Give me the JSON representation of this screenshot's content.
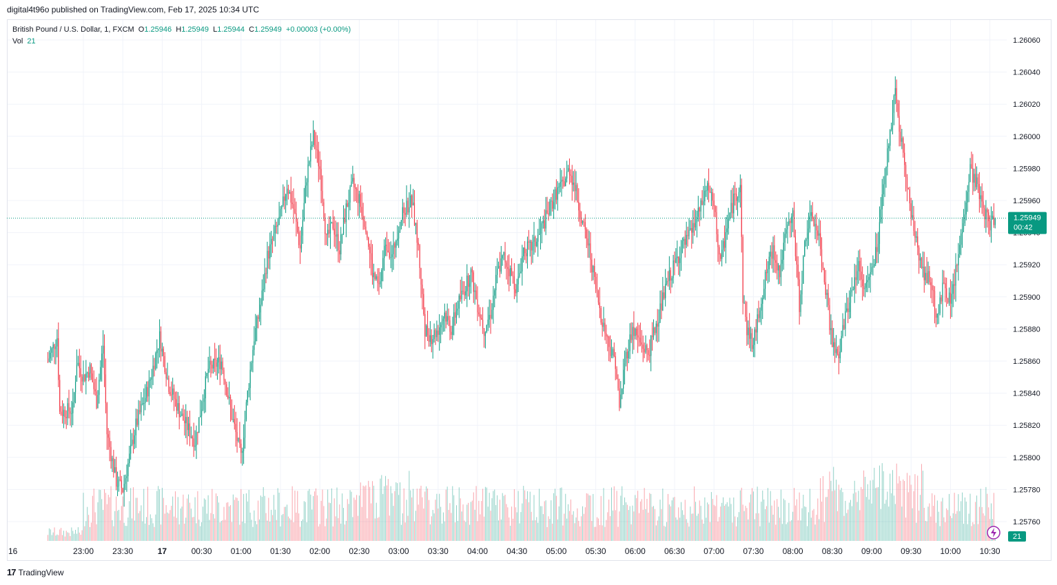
{
  "header": {
    "published": "digital4t96o published on TradingView.com, Feb 17, 2025 10:34 UTC"
  },
  "legend": {
    "symbol": "British Pound / U.S. Dollar, 1, FXCM",
    "o_label": "O",
    "o_value": "1.25946",
    "h_label": "H",
    "h_value": "1.25949",
    "l_label": "L",
    "l_value": "1.25944",
    "c_label": "C",
    "c_value": "1.25949",
    "change": "+0.00003 (+0.00%)",
    "vol_label": "Vol",
    "vol_value": "21"
  },
  "price_badge": {
    "price": "1.25949",
    "countdown": "00:42"
  },
  "volume_badge": "21",
  "footer": {
    "brand": "TradingView",
    "logo_text": "17"
  },
  "colors": {
    "up": "#089981",
    "down": "#f23645",
    "grid": "#f0f3fa",
    "axis_text": "#131722"
  },
  "icons": [
    "lightning-icon",
    "tradingview-logo-icon"
  ],
  "chart_data": {
    "type": "candlestick",
    "interval": "1 minute",
    "last_price": 1.25949,
    "ylim": [
      1.2575,
      1.26065
    ],
    "y_ticks": [
      "1.26060",
      "1.26040",
      "1.26020",
      "1.26000",
      "1.25980",
      "1.25960",
      "1.25940",
      "1.25920",
      "1.25900",
      "1.25880",
      "1.25860",
      "1.25840",
      "1.25820",
      "1.25800",
      "1.25780",
      "1.25760"
    ],
    "x_ticks": [
      "16",
      "23:00",
      "23:30",
      "17",
      "00:30",
      "01:00",
      "01:30",
      "02:00",
      "02:30",
      "03:00",
      "03:30",
      "04:00",
      "04:30",
      "05:00",
      "05:30",
      "06:00",
      "06:30",
      "07:00",
      "07:30",
      "08:00",
      "08:30",
      "09:00",
      "09:30",
      "10:00",
      "10:30"
    ],
    "close_path": [
      {
        "t": "22:33",
        "v": 1.2586
      },
      {
        "t": "22:40",
        "v": 1.25875
      },
      {
        "t": "22:42",
        "v": 1.25828
      },
      {
        "t": "22:52",
        "v": 1.2583
      },
      {
        "t": "22:55",
        "v": 1.2586
      },
      {
        "t": "23:00",
        "v": 1.2585
      },
      {
        "t": "23:05",
        "v": 1.25855
      },
      {
        "t": "23:10",
        "v": 1.25835
      },
      {
        "t": "23:15",
        "v": 1.2587
      },
      {
        "t": "23:18",
        "v": 1.25815
      },
      {
        "t": "23:25",
        "v": 1.25785
      },
      {
        "t": "23:30",
        "v": 1.2578
      },
      {
        "t": "23:40",
        "v": 1.2582
      },
      {
        "t": "23:50",
        "v": 1.25845
      },
      {
        "t": "23:58",
        "v": 1.25875
      },
      {
        "t": "00:05",
        "v": 1.25845
      },
      {
        "t": "00:15",
        "v": 1.25825
      },
      {
        "t": "00:25",
        "v": 1.2581
      },
      {
        "t": "00:35",
        "v": 1.25855
      },
      {
        "t": "00:45",
        "v": 1.2586
      },
      {
        "t": "00:52",
        "v": 1.2583
      },
      {
        "t": "01:00",
        "v": 1.258
      },
      {
        "t": "01:05",
        "v": 1.2584
      },
      {
        "t": "01:10",
        "v": 1.25875
      },
      {
        "t": "01:15",
        "v": 1.25895
      },
      {
        "t": "01:20",
        "v": 1.25925
      },
      {
        "t": "01:30",
        "v": 1.2595
      },
      {
        "t": "01:35",
        "v": 1.2597
      },
      {
        "t": "01:40",
        "v": 1.25955
      },
      {
        "t": "01:45",
        "v": 1.2593
      },
      {
        "t": "01:50",
        "v": 1.25975
      },
      {
        "t": "01:55",
        "v": 1.26
      },
      {
        "t": "02:00",
        "v": 1.2598
      },
      {
        "t": "02:05",
        "v": 1.25935
      },
      {
        "t": "02:10",
        "v": 1.25945
      },
      {
        "t": "02:15",
        "v": 1.2593
      },
      {
        "t": "02:20",
        "v": 1.25955
      },
      {
        "t": "02:25",
        "v": 1.2597
      },
      {
        "t": "02:30",
        "v": 1.2596
      },
      {
        "t": "02:35",
        "v": 1.25945
      },
      {
        "t": "02:40",
        "v": 1.25915
      },
      {
        "t": "02:45",
        "v": 1.25905
      },
      {
        "t": "02:50",
        "v": 1.25935
      },
      {
        "t": "02:55",
        "v": 1.25925
      },
      {
        "t": "03:00",
        "v": 1.25945
      },
      {
        "t": "03:05",
        "v": 1.25955
      },
      {
        "t": "03:10",
        "v": 1.2596
      },
      {
        "t": "03:15",
        "v": 1.2593
      },
      {
        "t": "03:20",
        "v": 1.2588
      },
      {
        "t": "03:25",
        "v": 1.25875
      },
      {
        "t": "03:30",
        "v": 1.2588
      },
      {
        "t": "03:35",
        "v": 1.2589
      },
      {
        "t": "03:40",
        "v": 1.2588
      },
      {
        "t": "03:45",
        "v": 1.25895
      },
      {
        "t": "03:50",
        "v": 1.25905
      },
      {
        "t": "03:55",
        "v": 1.25915
      },
      {
        "t": "04:00",
        "v": 1.25895
      },
      {
        "t": "04:05",
        "v": 1.2588
      },
      {
        "t": "04:10",
        "v": 1.2589
      },
      {
        "t": "04:15",
        "v": 1.25915
      },
      {
        "t": "04:20",
        "v": 1.25925
      },
      {
        "t": "04:25",
        "v": 1.25915
      },
      {
        "t": "04:30",
        "v": 1.25905
      },
      {
        "t": "04:35",
        "v": 1.2593
      },
      {
        "t": "04:40",
        "v": 1.2593
      },
      {
        "t": "04:45",
        "v": 1.25935
      },
      {
        "t": "04:50",
        "v": 1.25945
      },
      {
        "t": "04:55",
        "v": 1.25955
      },
      {
        "t": "05:00",
        "v": 1.25965
      },
      {
        "t": "05:05",
        "v": 1.2597
      },
      {
        "t": "05:10",
        "v": 1.2598
      },
      {
        "t": "05:15",
        "v": 1.25965
      },
      {
        "t": "05:20",
        "v": 1.25945
      },
      {
        "t": "05:25",
        "v": 1.2593
      },
      {
        "t": "05:30",
        "v": 1.25905
      },
      {
        "t": "05:35",
        "v": 1.25885
      },
      {
        "t": "05:40",
        "v": 1.2587
      },
      {
        "t": "05:45",
        "v": 1.2586
      },
      {
        "t": "05:48",
        "v": 1.2583
      },
      {
        "t": "05:52",
        "v": 1.2586
      },
      {
        "t": "05:58",
        "v": 1.2588
      },
      {
        "t": "06:05",
        "v": 1.2587
      },
      {
        "t": "06:10",
        "v": 1.25865
      },
      {
        "t": "06:15",
        "v": 1.2588
      },
      {
        "t": "06:20",
        "v": 1.25895
      },
      {
        "t": "06:25",
        "v": 1.2591
      },
      {
        "t": "06:30",
        "v": 1.2592
      },
      {
        "t": "06:35",
        "v": 1.2593
      },
      {
        "t": "06:40",
        "v": 1.25935
      },
      {
        "t": "06:45",
        "v": 1.25945
      },
      {
        "t": "06:50",
        "v": 1.25955
      },
      {
        "t": "06:55",
        "v": 1.2597
      },
      {
        "t": "07:00",
        "v": 1.25955
      },
      {
        "t": "07:05",
        "v": 1.2592
      },
      {
        "t": "07:10",
        "v": 1.25945
      },
      {
        "t": "07:15",
        "v": 1.2596
      },
      {
        "t": "07:20",
        "v": 1.2597
      },
      {
        "t": "07:22",
        "v": 1.259
      },
      {
        "t": "07:25",
        "v": 1.2588
      },
      {
        "t": "07:30",
        "v": 1.2587
      },
      {
        "t": "07:35",
        "v": 1.25895
      },
      {
        "t": "07:40",
        "v": 1.25915
      },
      {
        "t": "07:45",
        "v": 1.2593
      },
      {
        "t": "07:50",
        "v": 1.25915
      },
      {
        "t": "07:55",
        "v": 1.2594
      },
      {
        "t": "08:00",
        "v": 1.2595
      },
      {
        "t": "08:05",
        "v": 1.25895
      },
      {
        "t": "08:10",
        "v": 1.2594
      },
      {
        "t": "08:15",
        "v": 1.2595
      },
      {
        "t": "08:20",
        "v": 1.25935
      },
      {
        "t": "08:25",
        "v": 1.25905
      },
      {
        "t": "08:30",
        "v": 1.2587
      },
      {
        "t": "08:35",
        "v": 1.2586
      },
      {
        "t": "08:38",
        "v": 1.2588
      },
      {
        "t": "08:45",
        "v": 1.25905
      },
      {
        "t": "08:50",
        "v": 1.2592
      },
      {
        "t": "08:55",
        "v": 1.25905
      },
      {
        "t": "09:00",
        "v": 1.25915
      },
      {
        "t": "09:05",
        "v": 1.25935
      },
      {
        "t": "09:10",
        "v": 1.25975
      },
      {
        "t": "09:15",
        "v": 1.2601
      },
      {
        "t": "09:18",
        "v": 1.2603
      },
      {
        "t": "09:20",
        "v": 1.2601
      },
      {
        "t": "09:25",
        "v": 1.25985
      },
      {
        "t": "09:30",
        "v": 1.2595
      },
      {
        "t": "09:35",
        "v": 1.2593
      },
      {
        "t": "09:40",
        "v": 1.25915
      },
      {
        "t": "09:45",
        "v": 1.2591
      },
      {
        "t": "09:50",
        "v": 1.25885
      },
      {
        "t": "09:55",
        "v": 1.2591
      },
      {
        "t": "10:00",
        "v": 1.25895
      },
      {
        "t": "10:05",
        "v": 1.2592
      },
      {
        "t": "10:10",
        "v": 1.2595
      },
      {
        "t": "10:15",
        "v": 1.2598
      },
      {
        "t": "10:20",
        "v": 1.2597
      },
      {
        "t": "10:25",
        "v": 1.25955
      },
      {
        "t": "10:30",
        "v": 1.25945
      },
      {
        "t": "10:34",
        "v": 1.25949
      }
    ],
    "volume_last": 21
  }
}
